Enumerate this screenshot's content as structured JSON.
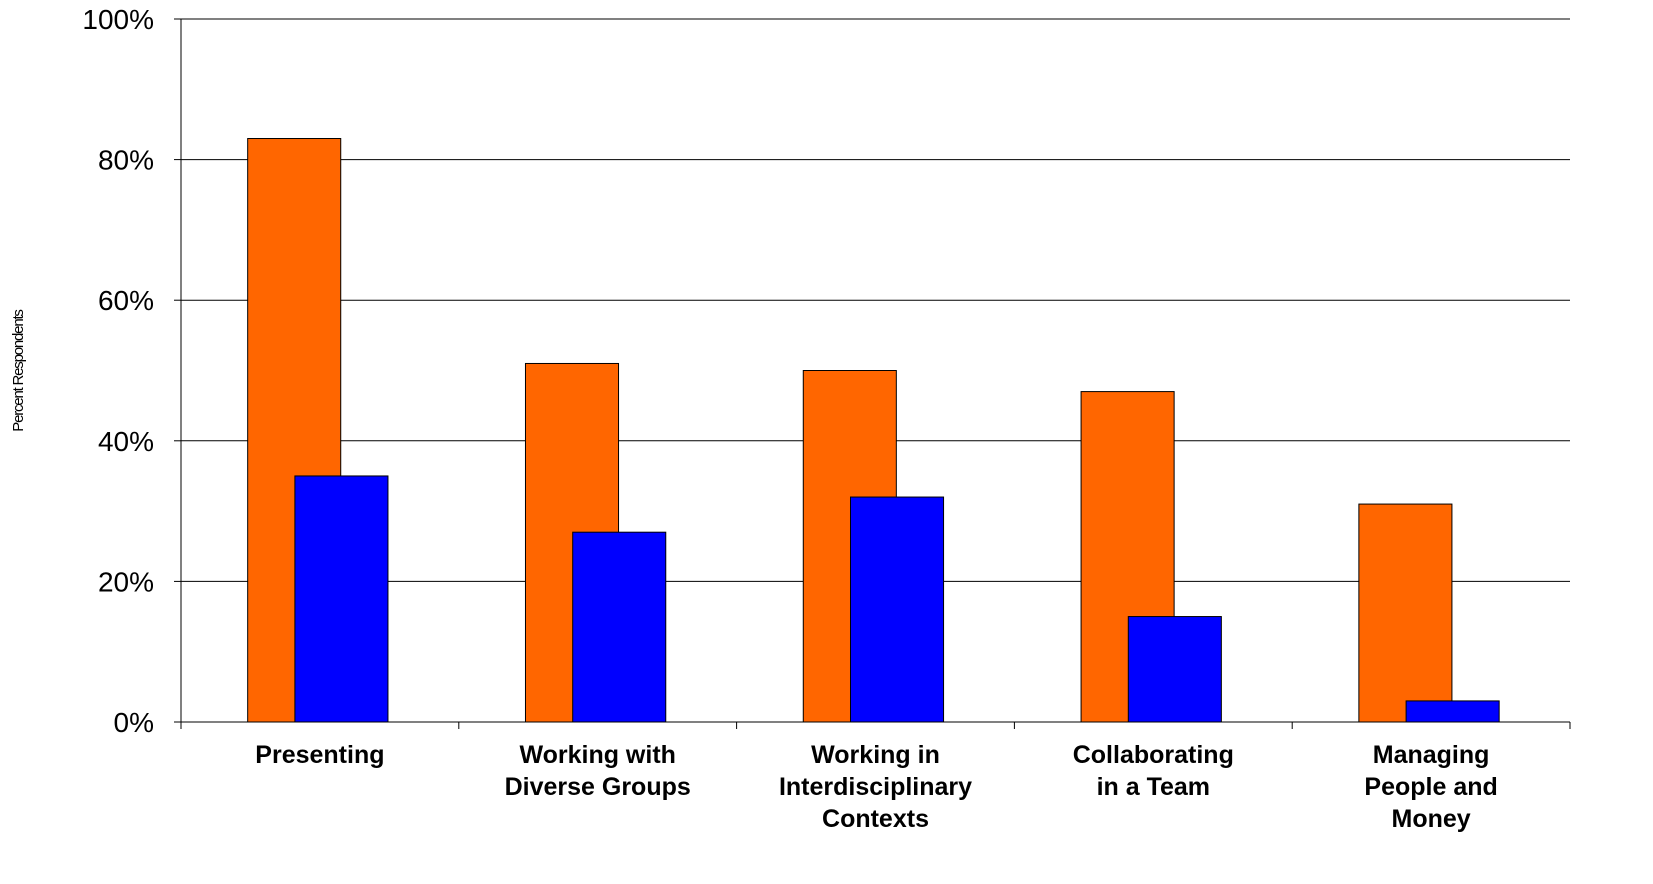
{
  "chart_data": {
    "type": "bar",
    "title": "",
    "xlabel": "",
    "ylabel": "Percent Respondents",
    "ylim": [
      0,
      100
    ],
    "yticks": [
      "0%",
      "20%",
      "40%",
      "60%",
      "80%",
      "100%"
    ],
    "ytick_values": [
      0,
      20,
      40,
      60,
      80,
      100
    ],
    "grid": true,
    "legend": "none",
    "categories": [
      [
        "Presenting"
      ],
      [
        "Working with",
        "Diverse Groups"
      ],
      [
        "Working in",
        "Interdisciplinary",
        "Contexts"
      ],
      [
        "Collaborating",
        "in a Team"
      ],
      [
        "Managing",
        "People and",
        "Money"
      ]
    ],
    "series": [
      {
        "values": [
          83,
          51,
          50,
          47,
          31
        ],
        "color": "#ff6600"
      },
      {
        "values": [
          35,
          27,
          32,
          15,
          3
        ],
        "color": "#0000ff"
      }
    ]
  }
}
